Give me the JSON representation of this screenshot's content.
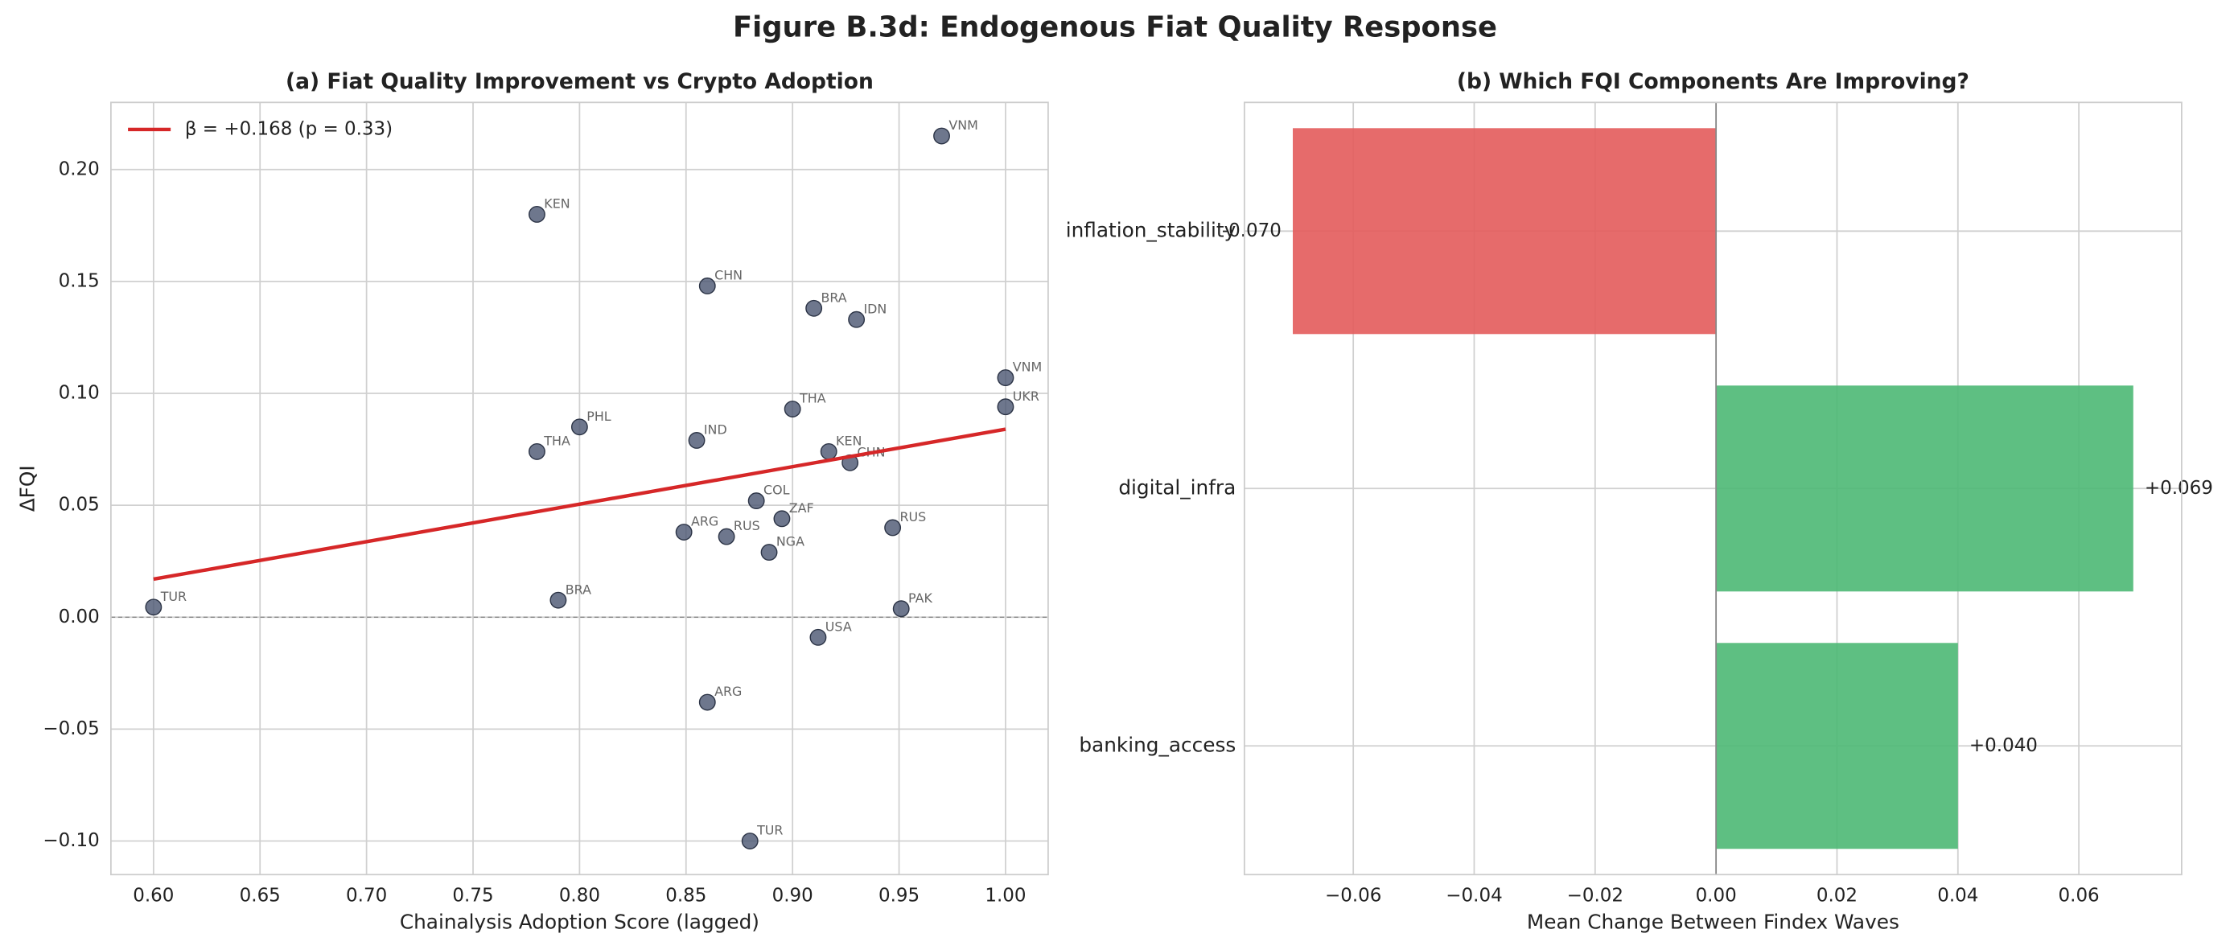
{
  "title": "Figure B.3d: Endogenous Fiat Quality Response",
  "chart_data": [
    {
      "type": "scatter",
      "title": "(a) Fiat Quality Improvement vs Crypto Adoption",
      "x_label": "Chainalysis Adoption Score (lagged)",
      "y_label": "ΔFQI",
      "xlim": [
        0.58,
        1.02
      ],
      "ylim": [
        -0.115,
        0.23
      ],
      "xticks": [
        {
          "value": 0.6,
          "label": "0.60"
        },
        {
          "value": 0.65,
          "label": "0.65"
        },
        {
          "value": 0.7,
          "label": "0.70"
        },
        {
          "value": 0.75,
          "label": "0.75"
        },
        {
          "value": 0.8,
          "label": "0.80"
        },
        {
          "value": 0.85,
          "label": "0.85"
        },
        {
          "value": 0.9,
          "label": "0.90"
        },
        {
          "value": 0.95,
          "label": "0.95"
        },
        {
          "value": 1.0,
          "label": "1.00"
        }
      ],
      "yticks": [
        {
          "value": -0.1,
          "label": "−0.10"
        },
        {
          "value": -0.05,
          "label": "−0.05"
        },
        {
          "value": 0,
          "label": "0.00"
        },
        {
          "value": 0.05,
          "label": "0.05"
        },
        {
          "value": 0.1,
          "label": "0.10"
        },
        {
          "value": 0.15,
          "label": "0.15"
        },
        {
          "value": 0.2,
          "label": "0.20"
        }
      ],
      "grid": true,
      "reference_line": 0,
      "points": {
        "color": "#4a5570",
        "labels": [
          "TUR",
          "KEN",
          "CHN",
          "BRA",
          "IDN",
          "VNM",
          "VNM",
          "UKR",
          "THA",
          "KEN",
          "CHN",
          "PHL",
          "IND",
          "THA",
          "COL",
          "ZAF",
          "ARG",
          "RUS",
          "NGA",
          "RUS",
          "BRA",
          "PAK",
          "USA",
          "ARG",
          "TUR"
        ],
        "x": [
          0.6,
          0.78,
          0.86,
          0.91,
          0.93,
          0.97,
          1.0,
          1.0,
          0.9,
          0.917,
          0.927,
          0.8,
          0.855,
          0.78,
          0.883,
          0.895,
          0.849,
          0.869,
          0.889,
          0.947,
          0.79,
          0.951,
          0.912,
          0.86,
          0.88
        ],
        "y": [
          0.0045,
          0.18,
          0.148,
          0.138,
          0.133,
          0.215,
          0.107,
          0.094,
          0.093,
          0.074,
          0.069,
          0.085,
          0.079,
          0.074,
          0.052,
          0.044,
          0.038,
          0.036,
          0.029,
          0.04,
          0.0076,
          0.0038,
          -0.009,
          -0.038,
          -0.1
        ]
      },
      "fit": {
        "name": "β = +0.168 (p = 0.33)",
        "color": "#d62728",
        "x": [
          0.6,
          1.0
        ],
        "y": [
          0.017,
          0.084
        ]
      },
      "legend": "upper left"
    },
    {
      "type": "bar",
      "orientation": "horizontal",
      "title": "(b) Which FQI Components Are Improving?",
      "x_label": "Mean Change Between Findex Waves",
      "categories": [
        "inflation_stability",
        "digital_infra",
        "banking_access"
      ],
      "values": [
        -0.07,
        0.069,
        0.04
      ],
      "value_labels": [
        "-0.070",
        "+0.069",
        "+0.040"
      ],
      "colors": [
        "#e35b5b",
        "#4cb874",
        "#4cb874"
      ],
      "xlim": [
        -0.078,
        0.077
      ],
      "xticks": [
        {
          "value": -0.06,
          "label": "−0.06"
        },
        {
          "value": -0.04,
          "label": "−0.04"
        },
        {
          "value": -0.02,
          "label": "−0.02"
        },
        {
          "value": 0,
          "label": "0.00"
        },
        {
          "value": 0.02,
          "label": "0.02"
        },
        {
          "value": 0.04,
          "label": "0.04"
        },
        {
          "value": 0.06,
          "label": "0.06"
        }
      ],
      "grid": true,
      "reference_line": 0
    }
  ]
}
